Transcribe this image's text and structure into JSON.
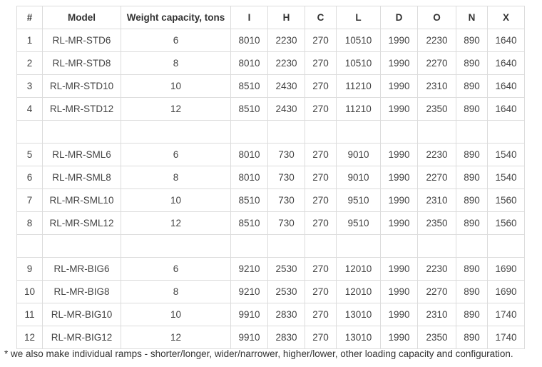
{
  "table": {
    "headers": [
      "#",
      "Model",
      "Weight capacity, tons",
      "I",
      "H",
      "C",
      "L",
      "D",
      "O",
      "N",
      "X"
    ],
    "groups": [
      [
        [
          "1",
          "RL-MR-STD6",
          "6",
          "8010",
          "2230",
          "270",
          "10510",
          "1990",
          "2230",
          "890",
          "1640"
        ],
        [
          "2",
          "RL-MR-STD8",
          "8",
          "8010",
          "2230",
          "270",
          "10510",
          "1990",
          "2270",
          "890",
          "1640"
        ],
        [
          "3",
          "RL-MR-STD10",
          "10",
          "8510",
          "2430",
          "270",
          "11210",
          "1990",
          "2310",
          "890",
          "1640"
        ],
        [
          "4",
          "RL-MR-STD12",
          "12",
          "8510",
          "2430",
          "270",
          "11210",
          "1990",
          "2350",
          "890",
          "1640"
        ]
      ],
      [
        [
          "5",
          "RL-MR-SML6",
          "6",
          "8010",
          "730",
          "270",
          "9010",
          "1990",
          "2230",
          "890",
          "1540"
        ],
        [
          "6",
          "RL-MR-SML8",
          "8",
          "8010",
          "730",
          "270",
          "9010",
          "1990",
          "2270",
          "890",
          "1540"
        ],
        [
          "7",
          "RL-MR-SML10",
          "10",
          "8510",
          "730",
          "270",
          "9510",
          "1990",
          "2310",
          "890",
          "1560"
        ],
        [
          "8",
          "RL-MR-SML12",
          "12",
          "8510",
          "730",
          "270",
          "9510",
          "1990",
          "2350",
          "890",
          "1560"
        ]
      ],
      [
        [
          "9",
          "RL-MR-BIG6",
          "6",
          "9210",
          "2530",
          "270",
          "12010",
          "1990",
          "2230",
          "890",
          "1690"
        ],
        [
          "10",
          "RL-MR-BIG8",
          "8",
          "9210",
          "2530",
          "270",
          "12010",
          "1990",
          "2270",
          "890",
          "1690"
        ],
        [
          "11",
          "RL-MR-BIG10",
          "10",
          "9910",
          "2830",
          "270",
          "13010",
          "1990",
          "2310",
          "890",
          "1740"
        ],
        [
          "12",
          "RL-MR-BIG12",
          "12",
          "9910",
          "2830",
          "270",
          "13010",
          "1990",
          "2350",
          "890",
          "1740"
        ]
      ]
    ]
  },
  "footnote": "* we also make individual ramps - shorter/longer, wider/narrower, higher/lower, other loading capacity and configuration."
}
